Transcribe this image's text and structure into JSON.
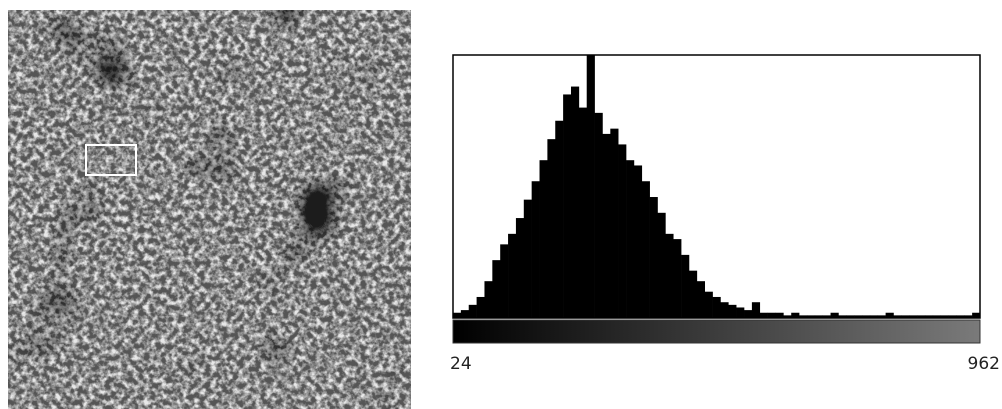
{
  "chart_data": {
    "type": "histogram",
    "bins": [
      24,
      38,
      52,
      66,
      80,
      94,
      108,
      122,
      136,
      150,
      164,
      178,
      192,
      206,
      220,
      234,
      248,
      262,
      276,
      290,
      304,
      318,
      332,
      346,
      360,
      374,
      388,
      402,
      416,
      430,
      444,
      458,
      472,
      486,
      500,
      514,
      528,
      542,
      556,
      570,
      584,
      598,
      612,
      626,
      640,
      654,
      668,
      682,
      696,
      710,
      724,
      738,
      752,
      766,
      780,
      794,
      808,
      822,
      836,
      850,
      864,
      878,
      892,
      906,
      920,
      934,
      948,
      962
    ],
    "counts": [
      2,
      3,
      5,
      8,
      14,
      22,
      28,
      32,
      38,
      45,
      52,
      60,
      68,
      75,
      85,
      88,
      80,
      100,
      78,
      70,
      72,
      66,
      60,
      58,
      52,
      46,
      40,
      32,
      30,
      24,
      18,
      14,
      10,
      8,
      6,
      5,
      4,
      3,
      6,
      2,
      2,
      2,
      1,
      2,
      1,
      1,
      1,
      1,
      2,
      1,
      1,
      1,
      1,
      1,
      1,
      2,
      1,
      1,
      1,
      1,
      1,
      1,
      1,
      1,
      1,
      1,
      2
    ],
    "color": "#000000",
    "xlim": [
      24,
      962
    ],
    "xticks": [
      24,
      962
    ],
    "ylim": [
      0,
      100
    ]
  }
}
